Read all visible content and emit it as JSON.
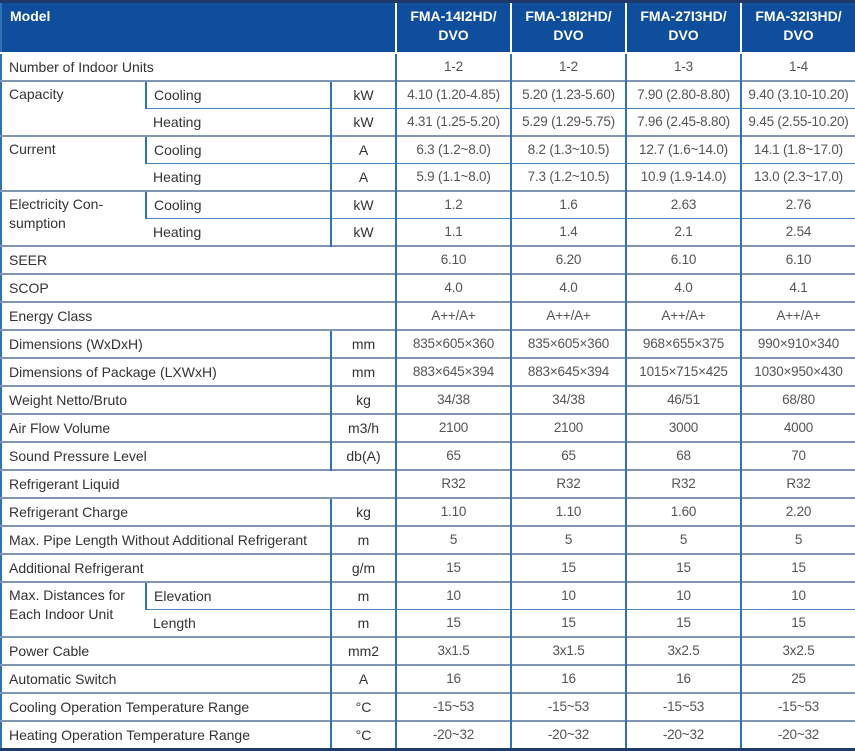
{
  "colors": {
    "header_bg": "#0F4E9C",
    "header_text": "#FFFFFF",
    "border_blue": "#2E74B5",
    "frame_dark": "#1E3A68",
    "row_line": "#8096B4",
    "sub_row_line": "#4E86C0",
    "label_text": "#333333",
    "value_text": "#555555"
  },
  "table": {
    "header": {
      "model_label": "Model",
      "model_columns": [
        "FMA-14I2HD/\nDVO",
        "FMA-18I2HD/\nDVO",
        "FMA-27I3HD/\nDVO",
        "FMA-32I3HD/\nDVO"
      ]
    },
    "rows": [
      {
        "label": "Number of Indoor Units",
        "label_colspan": 3,
        "values": [
          "1-2",
          "1-2",
          "1-3",
          "1-4"
        ]
      },
      {
        "label": "Capacity",
        "label_rowspan": 2,
        "sublabel": "Cooling",
        "unit": "kW",
        "values": [
          "4.10 (1.20-4.85)",
          "5.20 (1.23-5.60)",
          "7.90 (2.80-8.80)",
          "9.40 (3.10-10.20)"
        ]
      },
      {
        "sublabel": "Heating",
        "unit": "kW",
        "values": [
          "4.31 (1.25-5.20)",
          "5.29 (1.29-5.75)",
          "7.96 (2.45-8.80)",
          "9.45 (2.55-10.20)"
        ]
      },
      {
        "label": "Current",
        "label_rowspan": 2,
        "sublabel": "Cooling",
        "unit": "A",
        "values": [
          "6.3 (1.2~8.0)",
          "8.2 (1.3~10.5)",
          "12.7 (1.6~14.0)",
          "14.1 (1.8~17.0)"
        ]
      },
      {
        "sublabel": "Heating",
        "unit": "A",
        "values": [
          "5.9 (1.1~8.0)",
          "7.3 (1.2~10.5)",
          "10.9 (1.9-14.0)",
          "13.0 (2.3~17.0)"
        ]
      },
      {
        "label": "Electricity Con-\nsumption",
        "label_rowspan": 2,
        "sublabel": "Cooling",
        "unit": "kW",
        "values": [
          "1.2",
          "1.6",
          "2.63",
          "2.76"
        ]
      },
      {
        "sublabel": "Heating",
        "unit": "kW",
        "values": [
          "1.1",
          "1.4",
          "2.1",
          "2.54"
        ]
      },
      {
        "label": "SEER",
        "label_colspan": 3,
        "values": [
          "6.10",
          "6.20",
          "6.10",
          "6.10"
        ]
      },
      {
        "label": "SCOP",
        "label_colspan": 3,
        "values": [
          "4.0",
          "4.0",
          "4.0",
          "4.1"
        ]
      },
      {
        "label": "Energy Class",
        "label_colspan": 3,
        "values": [
          "A++/A+",
          "A++/A+",
          "A++/A+",
          "A++/A+"
        ]
      },
      {
        "label": "Dimensions (WxDxH)",
        "label_colspan": 2,
        "unit": "mm",
        "values": [
          "835×605×360",
          "835×605×360",
          "968×655×375",
          "990×910×340"
        ]
      },
      {
        "label": "Dimensions of Package (LXWxH)",
        "label_colspan": 2,
        "unit": "mm",
        "values": [
          "883×645×394",
          "883×645×394",
          "1015×715×425",
          "1030×950×430"
        ]
      },
      {
        "label": "Weight Netto/Bruto",
        "label_colspan": 2,
        "unit": "kg",
        "values": [
          "34/38",
          "34/38",
          "46/51",
          "68/80"
        ]
      },
      {
        "label": "Air Flow Volume",
        "label_colspan": 2,
        "unit": "m3/h",
        "values": [
          "2100",
          "2100",
          "3000",
          "4000"
        ]
      },
      {
        "label": "Sound Pressure Level",
        "label_colspan": 2,
        "unit": "db(A)",
        "values": [
          "65",
          "65",
          "68",
          "70"
        ]
      },
      {
        "label": "Refrigerant Liquid",
        "label_colspan": 3,
        "values": [
          "R32",
          "R32",
          "R32",
          "R32"
        ]
      },
      {
        "label": "Refrigerant Charge",
        "label_colspan": 2,
        "unit": "kg",
        "values": [
          "1.10",
          "1.10",
          "1.60",
          "2.20"
        ]
      },
      {
        "label": "Max. Pipe Length Without Additional Refrigerant",
        "label_colspan": 2,
        "unit": "m",
        "values": [
          "5",
          "5",
          "5",
          "5"
        ]
      },
      {
        "label": "Additional Refrigerant",
        "label_colspan": 2,
        "unit": "g/m",
        "values": [
          "15",
          "15",
          "15",
          "15"
        ]
      },
      {
        "label": "Max. Distances for\nEach Indoor Unit",
        "label_rowspan": 2,
        "sublabel": "Elevation",
        "unit": "m",
        "values": [
          "10",
          "10",
          "10",
          "10"
        ]
      },
      {
        "sublabel": "Length",
        "unit": "m",
        "values": [
          "15",
          "15",
          "15",
          "15"
        ]
      },
      {
        "label": "Power Cable",
        "label_colspan": 2,
        "unit": "mm2",
        "values": [
          "3x1.5",
          "3x1.5",
          "3x2.5",
          "3x2.5"
        ]
      },
      {
        "label": "Automatic Switch",
        "label_colspan": 2,
        "unit": "A",
        "values": [
          "16",
          "16",
          "16",
          "25"
        ]
      },
      {
        "label": "Cooling Operation Temperature Range",
        "label_colspan": 2,
        "unit": "°C",
        "values": [
          "-15~53",
          "-15~53",
          "-15~53",
          "-15~53"
        ]
      },
      {
        "label": "Heating Operation Temperature Range",
        "label_colspan": 2,
        "unit": "°C",
        "values": [
          "-20~32",
          "-20~32",
          "-20~32",
          "-20~32"
        ]
      }
    ]
  }
}
